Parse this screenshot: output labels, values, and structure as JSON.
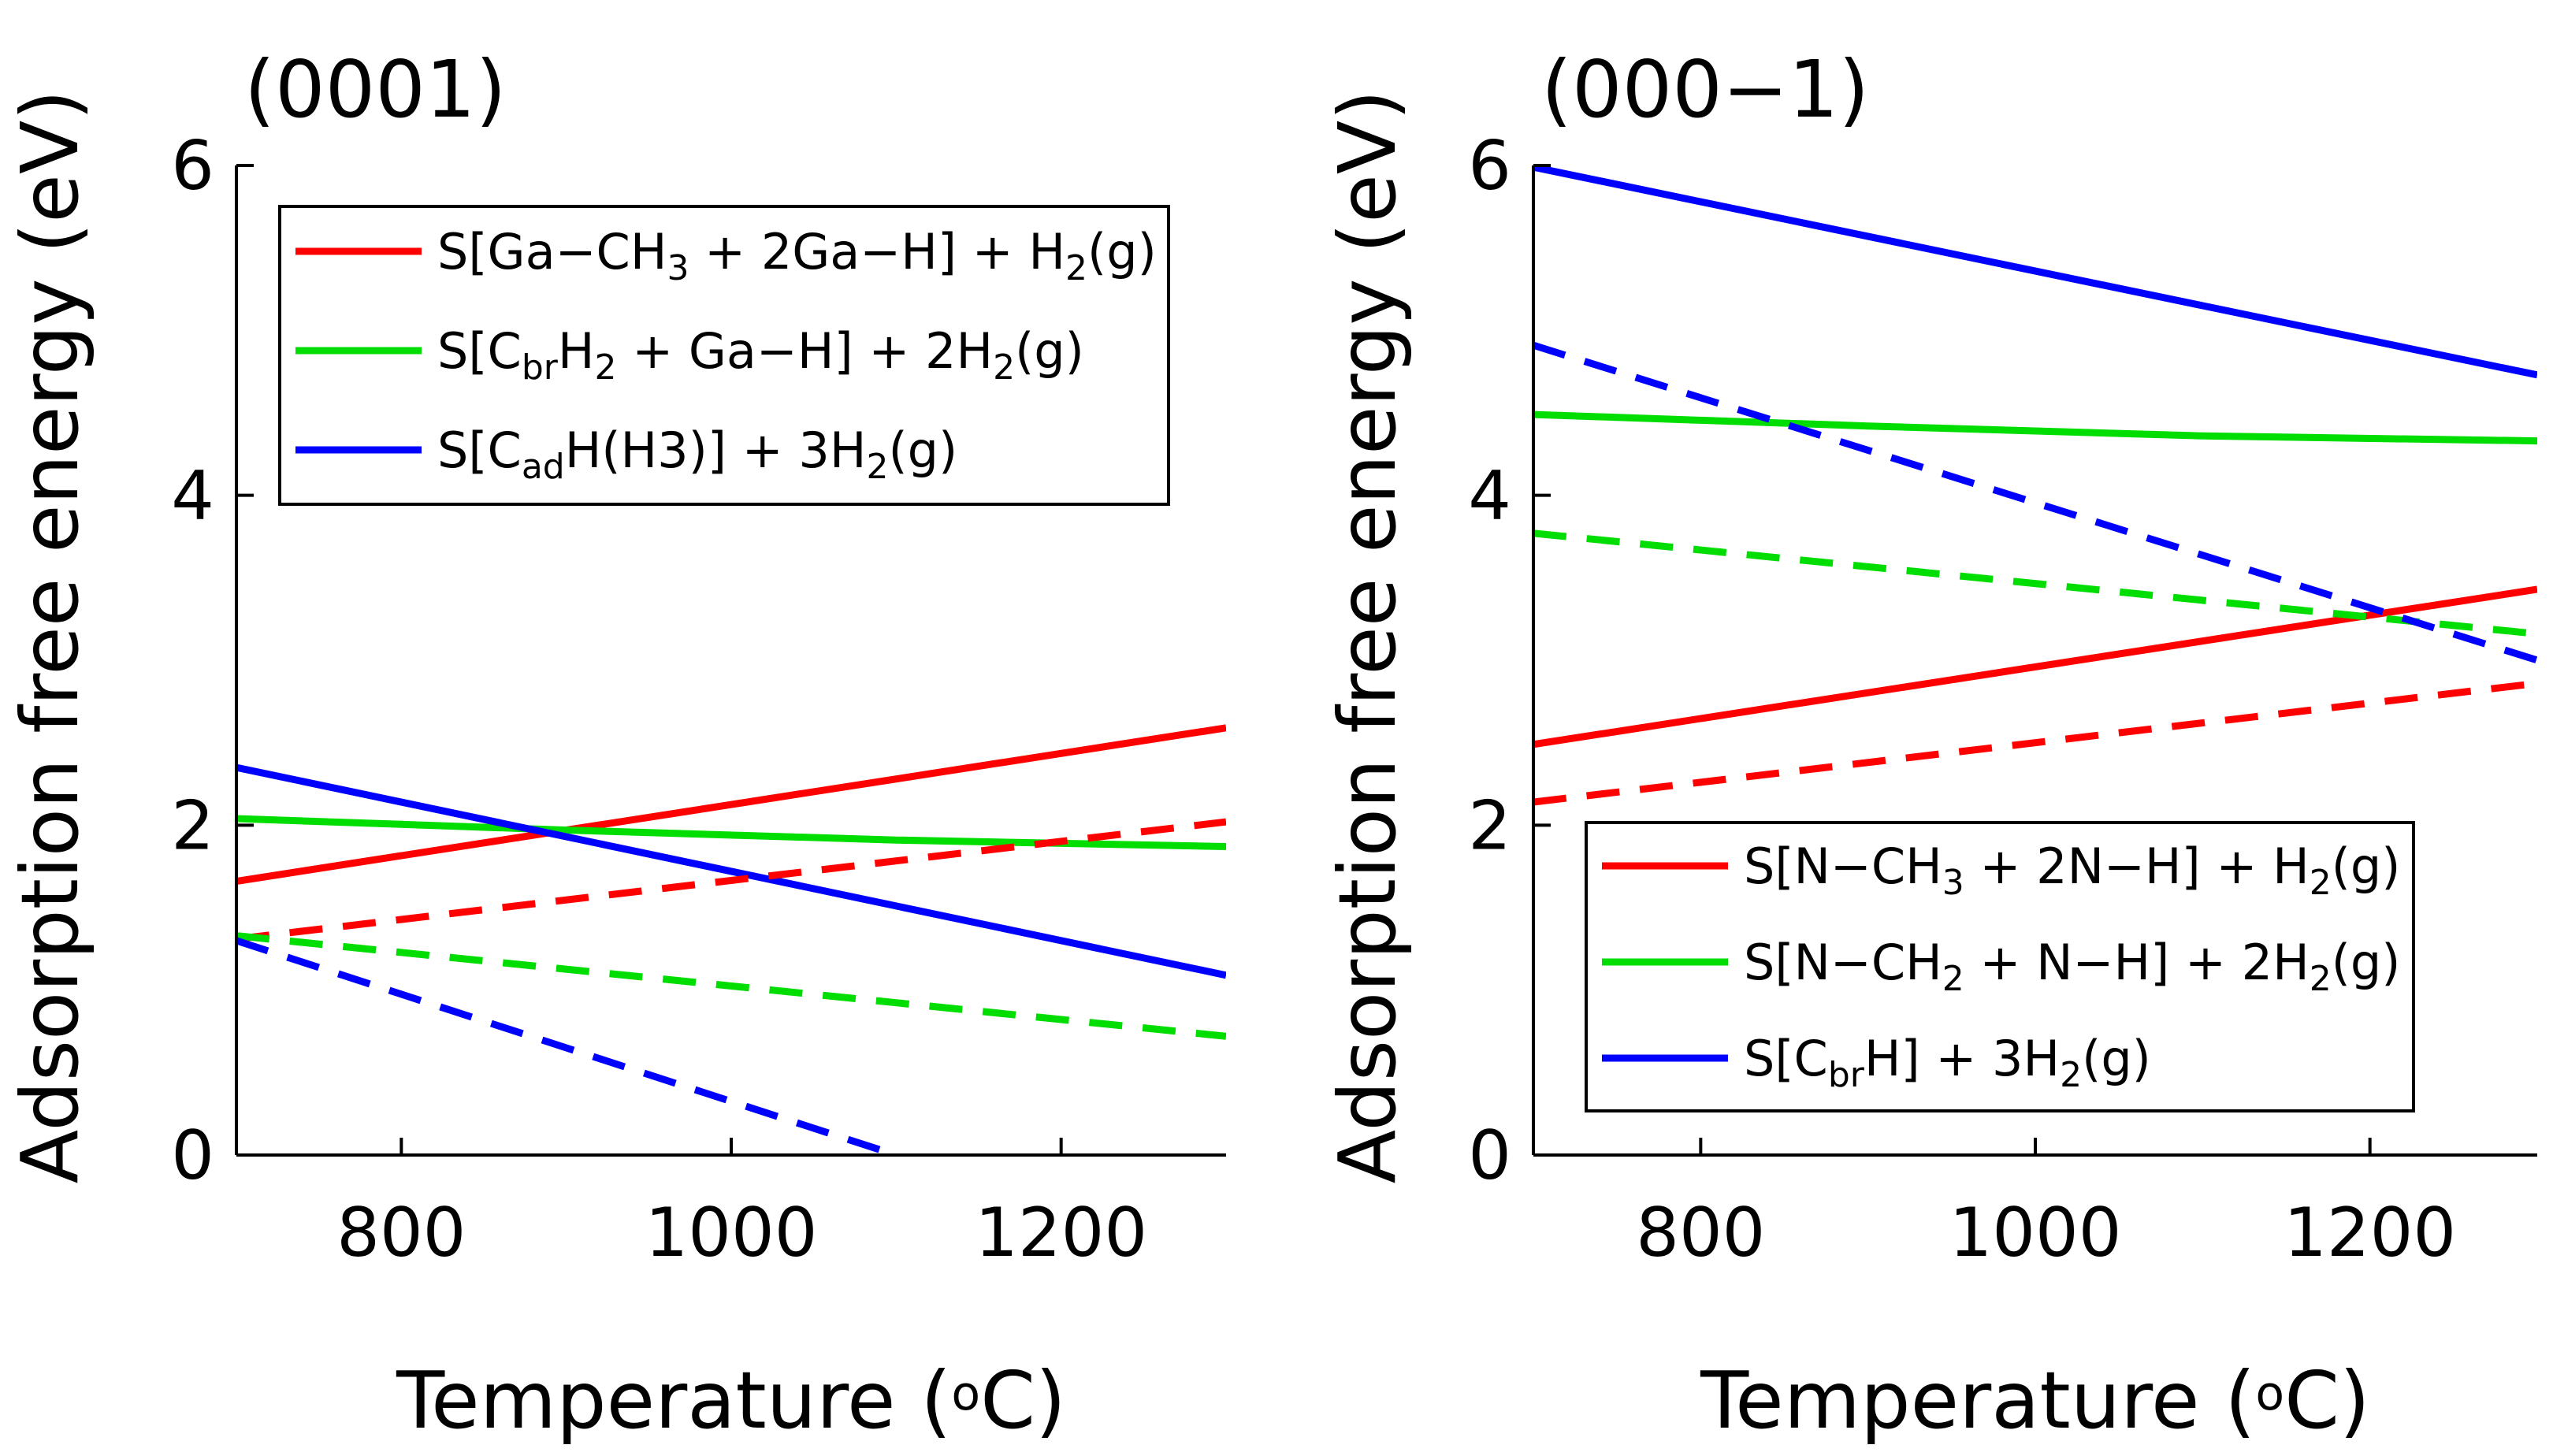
{
  "chart_data": [
    {
      "type": "line",
      "title": "(0001)",
      "xlabel": "Temperature",
      "xlabel_unit": {
        "open": " (",
        "sup": "o",
        "main": "C",
        "close": ")"
      },
      "ylabel": "Adsorption free energy (eV)",
      "xlim": [
        700,
        1300
      ],
      "ylim": [
        0,
        6
      ],
      "xticks": [
        800,
        1000,
        1200
      ],
      "yticks": [
        0,
        2,
        4,
        6
      ],
      "xtick_labels": [
        "800",
        "1000",
        "1200"
      ],
      "ytick_labels": [
        "0",
        "2",
        "4",
        "6"
      ],
      "grid": false,
      "legend_position": "top-right",
      "legend": [
        {
          "color": "#ff0000",
          "parts": [
            [
              "S[Ga−CH",
              ""
            ],
            [
              "3",
              "sub"
            ],
            [
              " + 2Ga−H] + H",
              ""
            ],
            [
              "2",
              "sub"
            ],
            [
              "(g)",
              ""
            ]
          ]
        },
        {
          "color": "#00dd00",
          "parts": [
            [
              "S[C",
              ""
            ],
            [
              "br",
              "sub"
            ],
            [
              "H",
              ""
            ],
            [
              "2",
              "sub"
            ],
            [
              " + Ga−H] + 2H",
              ""
            ],
            [
              "2",
              "sub"
            ],
            [
              "(g)",
              ""
            ]
          ]
        },
        {
          "color": "#0000ff",
          "parts": [
            [
              "S[C",
              ""
            ],
            [
              "ad",
              "sub"
            ],
            [
              "H(H3)] + 3H",
              ""
            ],
            [
              "2",
              "sub"
            ],
            [
              "(g)",
              ""
            ]
          ]
        }
      ],
      "series": [
        {
          "color": "#ff0000",
          "dash": false,
          "x": [
            700,
            1300
          ],
          "y": [
            1.66,
            2.59
          ]
        },
        {
          "color": "#00dd00",
          "dash": false,
          "x": [
            700,
            900,
            1100,
            1300
          ],
          "y": [
            2.04,
            1.97,
            1.91,
            1.87
          ]
        },
        {
          "color": "#0000ff",
          "dash": false,
          "x": [
            700,
            1300
          ],
          "y": [
            2.35,
            1.09
          ]
        },
        {
          "color": "#ff0000",
          "dash": true,
          "x": [
            700,
            1300
          ],
          "y": [
            1.31,
            2.02
          ]
        },
        {
          "color": "#00dd00",
          "dash": true,
          "x": [
            700,
            1300
          ],
          "y": [
            1.33,
            0.72
          ]
        },
        {
          "color": "#0000ff",
          "dash": true,
          "x": [
            700,
            1100
          ],
          "y": [
            1.3,
            0.0
          ]
        }
      ]
    },
    {
      "type": "line",
      "title": "(000−1)",
      "xlabel": "Temperature",
      "xlabel_unit": {
        "open": " (",
        "sup": "o",
        "main": "C",
        "close": ")"
      },
      "ylabel": "Adsorption free energy (eV)",
      "xlim": [
        700,
        1300
      ],
      "ylim": [
        0,
        6
      ],
      "xticks": [
        800,
        1000,
        1200
      ],
      "yticks": [
        0,
        2,
        4,
        6
      ],
      "xtick_labels": [
        "800",
        "1000",
        "1200"
      ],
      "ytick_labels": [
        "0",
        "2",
        "4",
        "6"
      ],
      "grid": false,
      "legend_position": "bottom-right",
      "legend": [
        {
          "color": "#ff0000",
          "parts": [
            [
              "S[N−CH",
              ""
            ],
            [
              "3",
              "sub"
            ],
            [
              " + 2N−H] + H",
              ""
            ],
            [
              "2",
              "sub"
            ],
            [
              "(g)",
              ""
            ]
          ]
        },
        {
          "color": "#00dd00",
          "parts": [
            [
              "S[N−CH",
              ""
            ],
            [
              "2",
              "sub"
            ],
            [
              " + N−H] + 2H",
              ""
            ],
            [
              "2",
              "sub"
            ],
            [
              "(g)",
              ""
            ]
          ]
        },
        {
          "color": "#0000ff",
          "parts": [
            [
              "S[C",
              ""
            ],
            [
              "br",
              "sub"
            ],
            [
              "H] + 3H",
              ""
            ],
            [
              "2",
              "sub"
            ],
            [
              "(g)",
              ""
            ]
          ]
        }
      ],
      "series": [
        {
          "color": "#ff0000",
          "dash": false,
          "x": [
            700,
            1300
          ],
          "y": [
            2.49,
            3.43
          ]
        },
        {
          "color": "#00dd00",
          "dash": false,
          "x": [
            700,
            900,
            1100,
            1300
          ],
          "y": [
            4.49,
            4.42,
            4.36,
            4.33
          ]
        },
        {
          "color": "#0000ff",
          "dash": false,
          "x": [
            700,
            1300
          ],
          "y": [
            5.99,
            4.73
          ]
        },
        {
          "color": "#ff0000",
          "dash": true,
          "x": [
            700,
            1300
          ],
          "y": [
            2.14,
            2.86
          ]
        },
        {
          "color": "#00dd00",
          "dash": true,
          "x": [
            700,
            1300
          ],
          "y": [
            3.77,
            3.16
          ]
        },
        {
          "color": "#0000ff",
          "dash": true,
          "x": [
            700,
            1300
          ],
          "y": [
            4.91,
            3.0
          ]
        }
      ]
    }
  ]
}
